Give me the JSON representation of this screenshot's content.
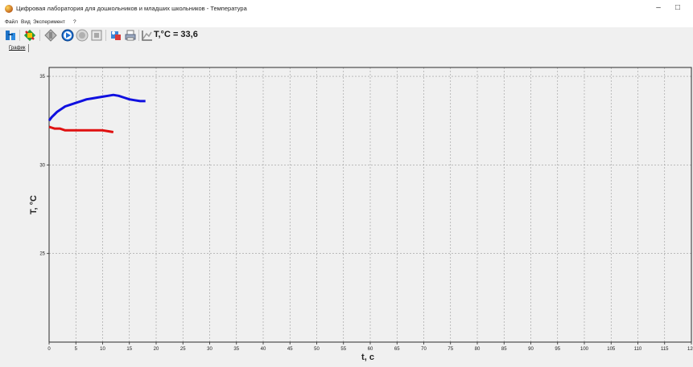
{
  "window": {
    "title": "Цифровая лаборатория для дошкольников и младших школьников - Температура"
  },
  "menu": {
    "items": [
      "Файл",
      "Вид",
      "Эксперимент",
      "?"
    ]
  },
  "toolbar": {
    "readout": "T,°C = 33,6"
  },
  "tabs": [
    {
      "label": "График"
    }
  ],
  "chart_data": {
    "type": "line",
    "xlabel": "t, c",
    "ylabel": "T, °C",
    "xlim": [
      0,
      120
    ],
    "ylim": [
      20,
      35.5
    ],
    "x_ticks": [
      0,
      5,
      10,
      15,
      20,
      25,
      30,
      35,
      40,
      45,
      50,
      55,
      60,
      65,
      70,
      75,
      80,
      85,
      90,
      95,
      100,
      105,
      110,
      115,
      120
    ],
    "y_ticks": [
      25,
      30,
      35
    ],
    "grid": true,
    "legend": "none",
    "series": [
      {
        "color": "#1010e0",
        "x": [
          0,
          0.5,
          1,
          1.5,
          2,
          3,
          4,
          5,
          6,
          7,
          8,
          9,
          10,
          11,
          12,
          13,
          14,
          15,
          16,
          17,
          18
        ],
        "y": [
          32.5,
          32.7,
          32.85,
          33.0,
          33.1,
          33.3,
          33.4,
          33.5,
          33.6,
          33.7,
          33.75,
          33.8,
          33.85,
          33.9,
          33.95,
          33.9,
          33.8,
          33.7,
          33.65,
          33.6,
          33.6
        ]
      },
      {
        "color": "#e01010",
        "x": [
          0,
          0.5,
          1,
          2,
          3,
          4,
          5,
          6,
          7,
          8,
          9,
          10,
          11,
          12
        ],
        "y": [
          32.15,
          32.1,
          32.05,
          32.05,
          31.95,
          31.95,
          31.95,
          31.95,
          31.95,
          31.95,
          31.95,
          31.95,
          31.9,
          31.85
        ]
      }
    ]
  }
}
